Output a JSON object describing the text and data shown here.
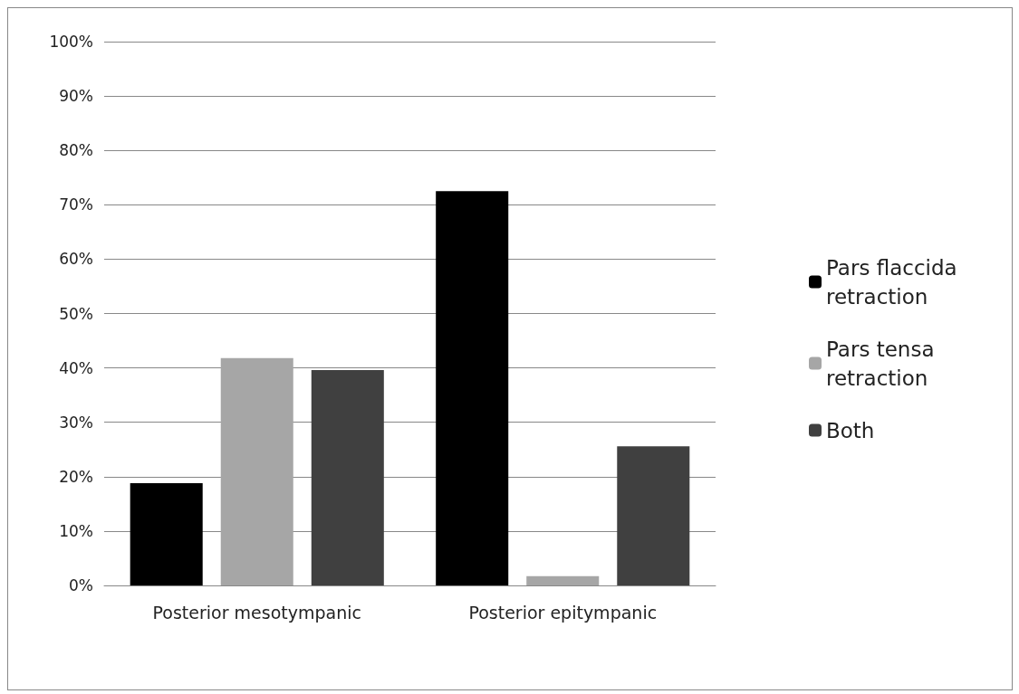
{
  "chart_data": {
    "type": "bar",
    "categories": [
      "Posterior mesotympanic",
      "Posterior epitympanic"
    ],
    "series": [
      {
        "name": "Pars flaccida retraction",
        "color": "#000000",
        "values": [
          18.8,
          72.5
        ]
      },
      {
        "name": "Pars tensa retraction",
        "color": "#a6a6a6",
        "values": [
          41.8,
          1.7
        ]
      },
      {
        "name": "Both",
        "color": "#404040",
        "values": [
          39.6,
          25.6
        ]
      }
    ],
    "ylim": [
      0,
      100
    ],
    "yticks": [
      {
        "value": 0,
        "label": "0%"
      },
      {
        "value": 10,
        "label": "10%"
      },
      {
        "value": 20,
        "label": "20%"
      },
      {
        "value": 30,
        "label": "30%"
      },
      {
        "value": 40,
        "label": "40%"
      },
      {
        "value": 50,
        "label": "50%"
      },
      {
        "value": 60,
        "label": "60%"
      },
      {
        "value": 70,
        "label": "70%"
      },
      {
        "value": 80,
        "label": "80%"
      },
      {
        "value": 90,
        "label": "90%"
      },
      {
        "value": 100,
        "label": "100%"
      }
    ],
    "grid": "y",
    "legend": "right"
  }
}
